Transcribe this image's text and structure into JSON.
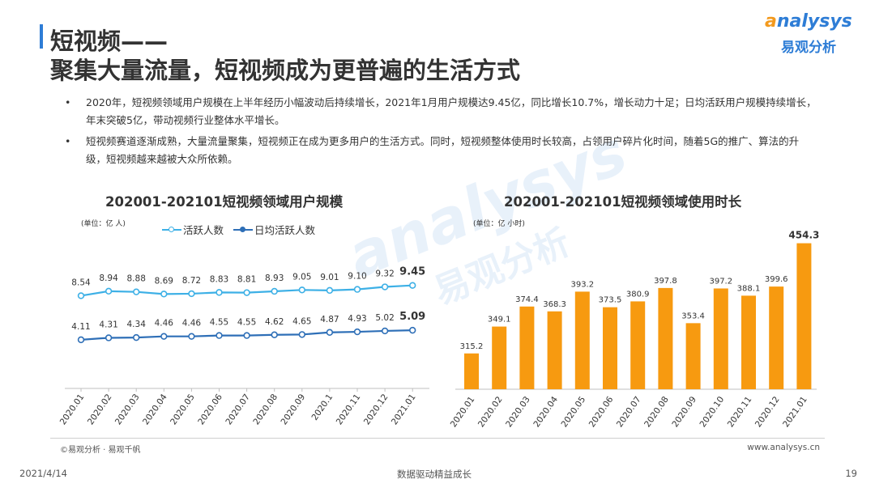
{
  "header": {
    "title_line1": "短视频——",
    "title_line2": "聚集大量流量，短视频成为更普遍的生活方式"
  },
  "logo": {
    "brand_en_a": "a",
    "brand_en_rest": "nalysys",
    "brand_cn": "易观分析"
  },
  "bullets": [
    {
      "marker": "•",
      "text": "2020年，短视频领域用户规模在上半年经历小幅波动后持续增长，2021年1月用户规模达9.45亿，同比增长10.7%，增长动力十足；日均活跃用户规模持续增长，年末突破5亿，带动视频行业整体水平增长。"
    },
    {
      "marker": "•",
      "text": "短视频赛道逐渐成熟，大量流量聚集，短视频正在成为更多用户的生活方式。同时，短视频整体使用时长较高，占领用户碎片化时间，随着5G的推广、算法的升级，短视频越来越被大众所依赖。"
    }
  ],
  "watermark": {
    "text_en": "analysys",
    "text_cn": "易观分析"
  },
  "colors": {
    "active_line": "#3db0e6",
    "daily_line": "#2e6fb7",
    "bar": "#f79a10",
    "axis": "#bfbfbf",
    "brand_blue": "#2e7dd6",
    "brand_orange": "#f39a1e"
  },
  "chart_data": [
    {
      "type": "line",
      "title": "202001-202101短视频领域用户规模",
      "unit": "(单位：亿 人)",
      "categories": [
        "2020.01",
        "2020.02",
        "2020.03",
        "2020.04",
        "2020.05",
        "2020.06",
        "2020.07",
        "2020.08",
        "2020.09",
        "2020.1",
        "2020.11",
        "2020.12",
        "2021.01"
      ],
      "series": [
        {
          "name": "活跃人数",
          "values": [
            8.54,
            8.94,
            8.88,
            8.69,
            8.72,
            8.83,
            8.81,
            8.93,
            9.05,
            9.01,
            9.1,
            9.32,
            9.45
          ]
        },
        {
          "name": "日均活跃人数",
          "values": [
            4.11,
            4.31,
            4.34,
            4.46,
            4.46,
            4.55,
            4.55,
            4.62,
            4.65,
            4.87,
            4.93,
            5.02,
            5.09
          ]
        }
      ],
      "data_labels": [
        [
          "8.54",
          "8.94",
          "8.88",
          "8.69",
          "8.72",
          "8.83",
          "8.81",
          "8.93",
          "9.05",
          "9.01",
          "9.10",
          "9.32",
          "9.45"
        ],
        [
          "4.11",
          "4.31",
          "4.34",
          "4.46",
          "4.46",
          "4.55",
          "4.55",
          "4.62",
          "4.65",
          "4.87",
          "4.93",
          "5.02",
          "5.09"
        ]
      ],
      "grid": false,
      "legend": "top"
    },
    {
      "type": "bar",
      "title": "202001-202101短视频领域使用时长",
      "unit": "(单位：亿 小时)",
      "categories": [
        "2020.01",
        "2020.02",
        "2020.03",
        "2020.04",
        "2020.05",
        "2020.06",
        "2020.07",
        "2020.08",
        "2020.09",
        "2020.10",
        "2020.11",
        "2020.12",
        "2021.01"
      ],
      "values": [
        315.2,
        349.1,
        374.4,
        368.3,
        393.2,
        373.5,
        380.9,
        397.8,
        353.4,
        397.2,
        388.1,
        399.6,
        454.3
      ],
      "data_labels": [
        "315.2",
        "349.1",
        "374.4",
        "368.3",
        "393.2",
        "373.5",
        "380.9",
        "397.8",
        "353.4",
        "397.2",
        "388.1",
        "399.6",
        "454.3"
      ],
      "grid": false,
      "legend": "none"
    }
  ],
  "footer": {
    "source": "©易观分析 · 易观千帆",
    "url": "www.analysys.cn",
    "date": "2021/4/14",
    "slogan": "数据驱动精益成长",
    "page": "19"
  }
}
